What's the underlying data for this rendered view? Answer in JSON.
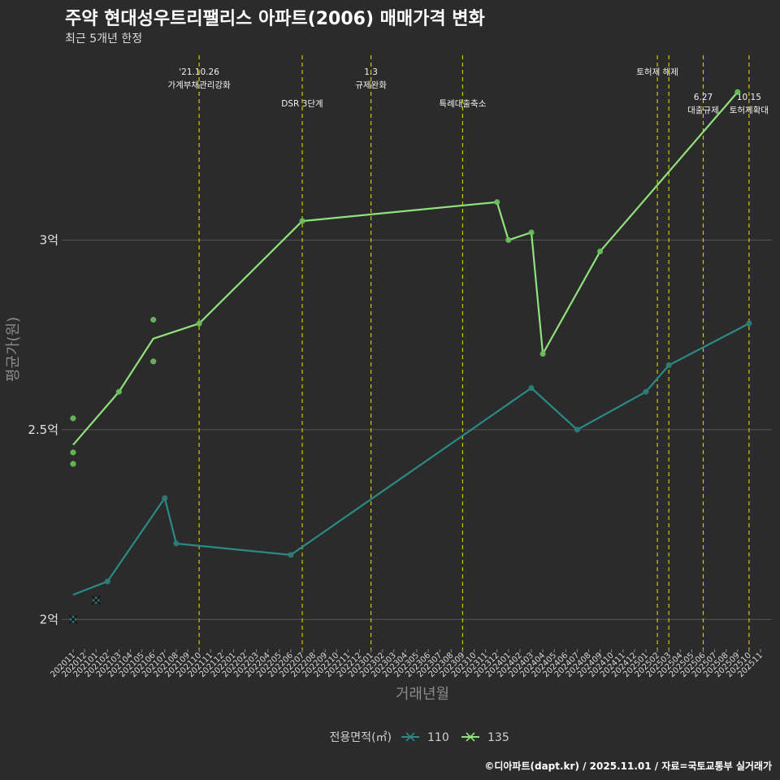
{
  "title": "주약 현대성우트리팰리스 아파트(2006) 매매가격 변화",
  "subtitle": "최근 5개년 한정",
  "footer": "©디아파트(dapt.kr) / 2025.11.01 / 자료=국토교통부 실거래가",
  "colors": {
    "background": "#2b2b2b",
    "grid": "#555555",
    "vline": "#c8c800",
    "series_110": "#2a8a86",
    "series_135": "#90e27c",
    "point_110": "#2f7d7a",
    "point_135": "#6cbf5e"
  },
  "chart_data": {
    "type": "line",
    "xlabel": "거래년월",
    "ylabel": "평균가(원)",
    "ylim": [
      1.93,
      3.5
    ],
    "yticks": [
      {
        "value": 2.0,
        "label": "2억"
      },
      {
        "value": 2.5,
        "label": "2.5억"
      },
      {
        "value": 3.0,
        "label": "3억"
      }
    ],
    "categories": [
      "202011",
      "202012",
      "202101",
      "202102",
      "202103",
      "202104",
      "202105",
      "202106",
      "202107",
      "202108",
      "202109",
      "202110",
      "202111",
      "202112",
      "202201",
      "202202",
      "202203",
      "202204",
      "202205",
      "202206",
      "202207",
      "202208",
      "202209",
      "202210",
      "202211",
      "202212",
      "202301",
      "202302",
      "202303",
      "202304",
      "202305",
      "202306",
      "202307",
      "202308",
      "202309",
      "202310",
      "202311",
      "202312",
      "202401",
      "202402",
      "202403",
      "202404",
      "202405",
      "202406",
      "202407",
      "202408",
      "202409",
      "202410",
      "202411",
      "202412",
      "202501",
      "202502",
      "202503",
      "202504",
      "202505",
      "202506",
      "202507",
      "202508",
      "202509",
      "202510",
      "202511"
    ],
    "legend_title": "전용면적(㎡)",
    "series": [
      {
        "name": "110",
        "color_key": "series_110",
        "line": [
          [
            "202011",
            2.065
          ],
          [
            "202102",
            2.1
          ],
          [
            "202107",
            2.32
          ],
          [
            "202108",
            2.2
          ],
          [
            "202206",
            2.17
          ],
          [
            "202403",
            2.61
          ],
          [
            "202407",
            2.5
          ],
          [
            "202501",
            2.6
          ],
          [
            "202503",
            2.67
          ],
          [
            "202510",
            2.78
          ]
        ],
        "points": [
          [
            "202102",
            2.1
          ],
          [
            "202107",
            2.32
          ],
          [
            "202108",
            2.2
          ],
          [
            "202206",
            2.17
          ],
          [
            "202403",
            2.61
          ],
          [
            "202407",
            2.5
          ],
          [
            "202501",
            2.6
          ],
          [
            "202503",
            2.67
          ],
          [
            "202510",
            2.78
          ]
        ],
        "x_marks": [
          [
            "202011",
            2.0
          ],
          [
            "202101",
            2.05
          ]
        ]
      },
      {
        "name": "135",
        "color_key": "series_135",
        "line": [
          [
            "202011",
            2.46
          ],
          [
            "202103",
            2.6
          ],
          [
            "202106",
            2.74
          ],
          [
            "202110",
            2.78
          ],
          [
            "202207",
            3.05
          ],
          [
            "202312",
            3.1
          ],
          [
            "202401",
            3.0
          ],
          [
            "202403",
            3.02
          ],
          [
            "202404",
            2.7
          ],
          [
            "202409",
            2.97
          ],
          [
            "202509",
            3.39
          ]
        ],
        "points": [
          [
            "202011",
            2.53
          ],
          [
            "202011",
            2.44
          ],
          [
            "202011",
            2.41
          ],
          [
            "202103",
            2.6
          ],
          [
            "202106",
            2.79
          ],
          [
            "202106",
            2.68
          ],
          [
            "202110",
            2.78
          ],
          [
            "202207",
            3.05
          ],
          [
            "202312",
            3.1
          ],
          [
            "202401",
            3.0
          ],
          [
            "202403",
            3.02
          ],
          [
            "202404",
            2.7
          ],
          [
            "202409",
            2.97
          ],
          [
            "202509",
            3.39
          ]
        ],
        "x_marks": []
      }
    ],
    "events": [
      {
        "month": "202110",
        "lines": [
          "'21.10.26",
          "가계부채관리강화"
        ],
        "row": 0
      },
      {
        "month": "202207",
        "lines": [
          "DSR 3단계"
        ],
        "row": 1
      },
      {
        "month": "202301",
        "lines": [
          "1.3",
          "규제완화"
        ],
        "row": 0
      },
      {
        "month": "202309",
        "lines": [
          "특례대출축소"
        ],
        "row": 1
      },
      {
        "month": "202502",
        "lines": [
          "토허제 해제"
        ],
        "row": 0
      },
      {
        "month": "202503",
        "lines": [],
        "row": 0
      },
      {
        "month": "202506",
        "lines": [
          "6.27",
          "대출규제"
        ],
        "row": 2
      },
      {
        "month": "202510",
        "lines": [
          "10.15",
          "토허제확대"
        ],
        "row": 2
      }
    ]
  }
}
